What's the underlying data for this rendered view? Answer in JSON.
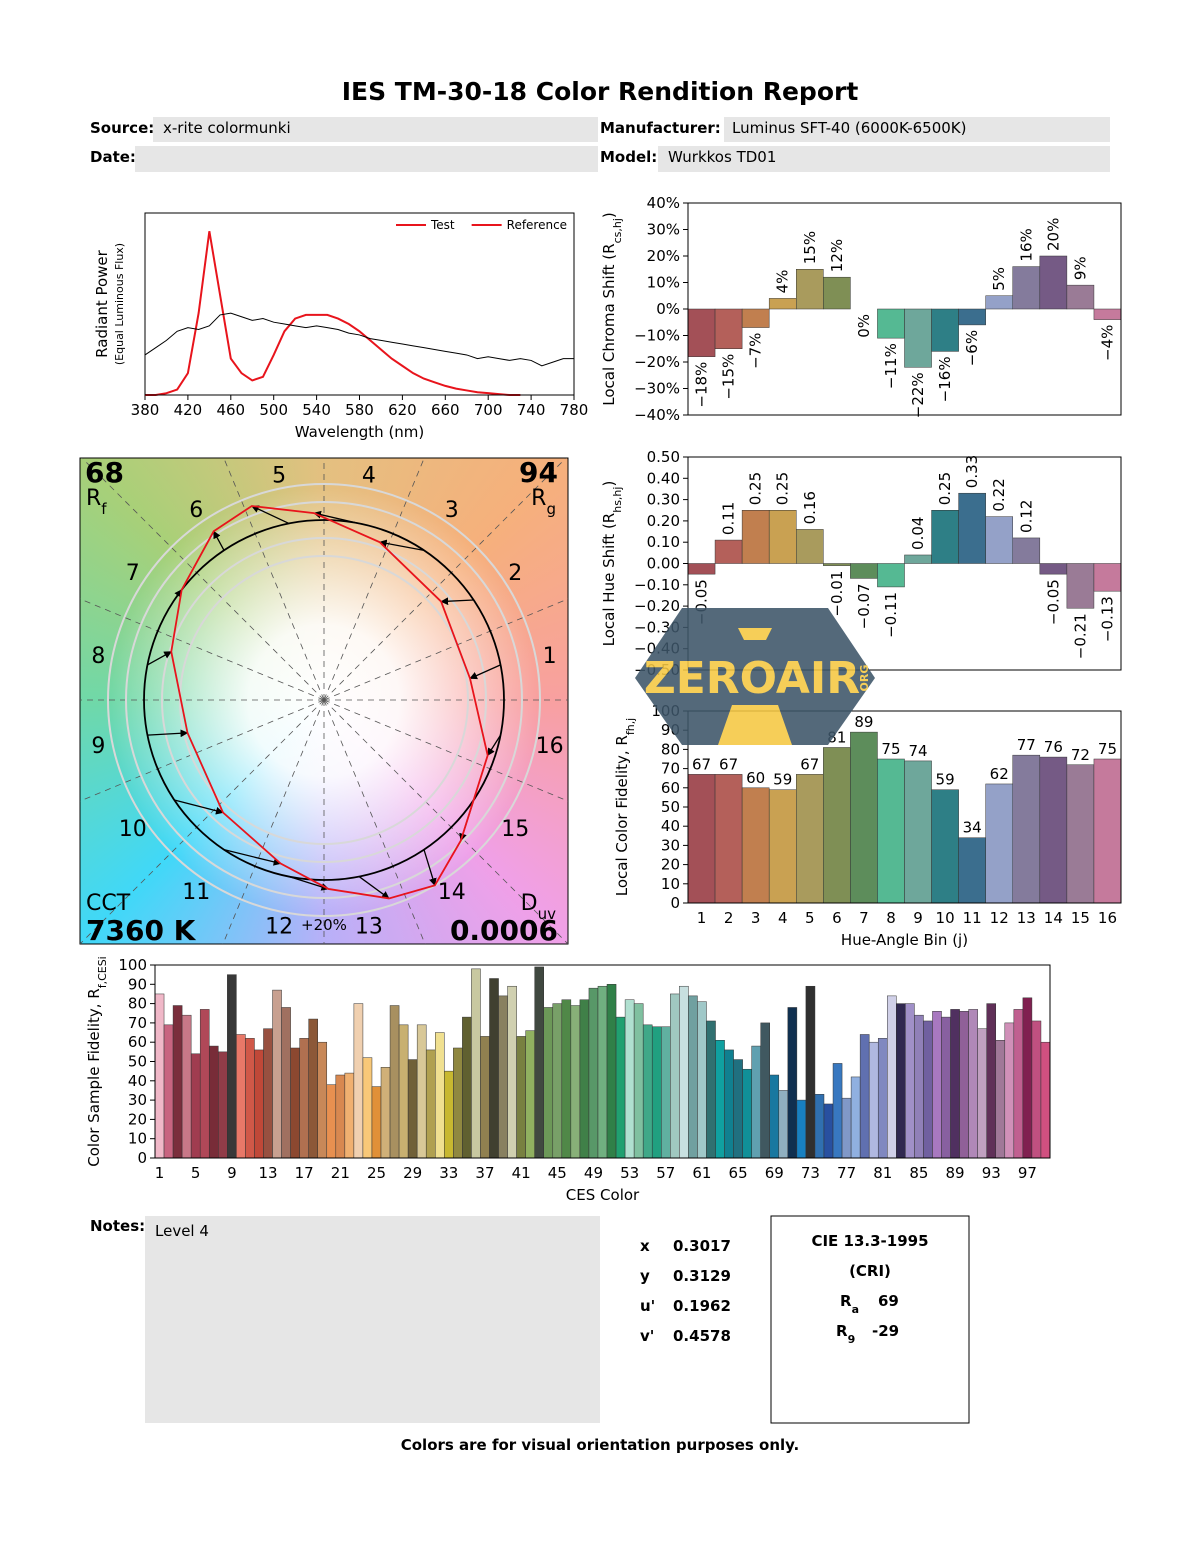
{
  "header": {
    "title": "IES TM-30-18 Color Rendition Report",
    "source_label": "Source:",
    "source": "x-rite colormunki",
    "manufacturer_label": "Manufacturer:",
    "manufacturer": "Luminus SFT-40 (6000K-6500K)",
    "date_label": "Date:",
    "model_label": "Model:",
    "model": "Wurkkos TD01"
  },
  "chart_data": [
    {
      "type": "line",
      "x_label": "Wavelength (nm)",
      "y_label": "Radiant Power",
      "y_label_sub": "(Equal Luminous Flux)",
      "x": [
        380,
        390,
        400,
        410,
        420,
        430,
        440,
        450,
        460,
        470,
        480,
        490,
        500,
        510,
        520,
        530,
        540,
        550,
        560,
        570,
        580,
        590,
        600,
        610,
        620,
        630,
        640,
        650,
        660,
        670,
        680,
        690,
        700,
        710,
        720,
        730,
        740,
        750,
        760,
        770,
        780
      ],
      "xlim": [
        380,
        780
      ],
      "xticks": [
        380,
        420,
        460,
        500,
        540,
        580,
        620,
        660,
        700,
        740,
        780
      ],
      "ylim": [
        0,
        1
      ],
      "legend": "upper right",
      "series": [
        {
          "name": "Test",
          "color": "#e8141c",
          "values": [
            0,
            0,
            0.01,
            0.03,
            0.12,
            0.45,
            0.9,
            0.55,
            0.2,
            0.12,
            0.08,
            0.1,
            0.22,
            0.35,
            0.42,
            0.44,
            0.44,
            0.44,
            0.42,
            0.39,
            0.35,
            0.3,
            0.25,
            0.2,
            0.16,
            0.12,
            0.09,
            0.07,
            0.05,
            0.035,
            0.025,
            0.015,
            0.01,
            0.005,
            0,
            0,
            null,
            null,
            null,
            null,
            null
          ]
        },
        {
          "name": "Reference",
          "color": "#000000",
          "values": [
            0.22,
            0.26,
            0.3,
            0.35,
            0.37,
            0.36,
            0.38,
            0.44,
            0.45,
            0.43,
            0.41,
            0.42,
            0.4,
            0.39,
            0.38,
            0.37,
            0.38,
            0.37,
            0.36,
            0.34,
            0.33,
            0.31,
            0.3,
            0.29,
            0.28,
            0.27,
            0.26,
            0.25,
            0.24,
            0.23,
            0.22,
            0.2,
            0.21,
            0.2,
            0.19,
            0.2,
            0.19,
            0.16,
            0.18,
            0.2,
            0.2
          ]
        }
      ]
    },
    {
      "type": "bar",
      "y_label": {
        "text": "Local Chroma Shift (R",
        "sub": "cs,hj",
        "end": ")"
      },
      "values": [
        -18,
        -15,
        -7,
        4,
        15,
        12,
        0,
        -11,
        -22,
        -16,
        -6,
        5,
        16,
        20,
        9,
        -4
      ],
      "value_labels": [
        "−18%",
        "−15%",
        "−7%",
        "4%",
        "15%",
        "12%",
        "0%",
        "−11%",
        "−22%",
        "−16%",
        "−6%",
        "5%",
        "16%",
        "20%",
        "9%",
        "−4%"
      ],
      "colors": [
        "#a35057",
        "#b4605a",
        "#c17f4f",
        "#c9a152",
        "#a99b5d",
        "#7f8f55",
        "#5d8d5b",
        "#55b993",
        "#6ea79b",
        "#2e7f86",
        "#3b6e8e",
        "#94a1c8",
        "#847b9c",
        "#755a85",
        "#9a7b96",
        "#c57a9c"
      ],
      "ylim": [
        -40,
        40
      ],
      "yticks": [
        {
          "value": -40,
          "label": "−40%"
        },
        {
          "value": -30,
          "label": "−30%"
        },
        {
          "value": -20,
          "label": "−20%"
        },
        {
          "value": -10,
          "label": "−10%"
        },
        {
          "value": 0,
          "label": "0%"
        },
        {
          "value": 10,
          "label": "10%"
        },
        {
          "value": 20,
          "label": "20%"
        },
        {
          "value": 30,
          "label": "30%"
        },
        {
          "value": 40,
          "label": "40%"
        }
      ]
    },
    {
      "type": "bar",
      "y_label": {
        "text": "Local Hue Shift (R",
        "sub": "hs,hj",
        "end": ")"
      },
      "values": [
        -0.05,
        0.11,
        0.25,
        0.25,
        0.16,
        -0.01,
        -0.07,
        -0.11,
        0.04,
        0.25,
        0.33,
        0.22,
        0.12,
        -0.05,
        -0.21,
        -0.13
      ],
      "value_labels": [
        "−0.05",
        "0.11",
        "0.25",
        "0.25",
        "0.16",
        "−0.01",
        "−0.07",
        "−0.11",
        "0.04",
        "0.25",
        "0.33",
        "0.22",
        "0.12",
        "−0.05",
        "−0.21",
        "−0.13"
      ],
      "colors": [
        "#a35057",
        "#b4605a",
        "#c17f4f",
        "#c9a152",
        "#a99b5d",
        "#7f8f55",
        "#5d8d5b",
        "#55b993",
        "#6ea79b",
        "#2e7f86",
        "#3b6e8e",
        "#94a1c8",
        "#847b9c",
        "#755a85",
        "#9a7b96",
        "#c57a9c"
      ],
      "ylim": [
        -0.5,
        0.5
      ],
      "yticks": [
        {
          "value": -0.5,
          "label": "−0.50"
        },
        {
          "value": -0.4,
          "label": "−0.40"
        },
        {
          "value": -0.3,
          "label": "−0.30"
        },
        {
          "value": -0.2,
          "label": "−0.20"
        },
        {
          "value": -0.1,
          "label": "−0.10"
        },
        {
          "value": 0,
          "label": "0.00"
        },
        {
          "value": 0.1,
          "label": "0.10"
        },
        {
          "value": 0.2,
          "label": "0.20"
        },
        {
          "value": 0.3,
          "label": "0.30"
        },
        {
          "value": 0.4,
          "label": "0.40"
        },
        {
          "value": 0.5,
          "label": "0.50"
        }
      ]
    },
    {
      "type": "bar",
      "y_label": {
        "text": "Local Color Fidelity, R",
        "sub": "fh,j"
      },
      "x_label": "Hue-Angle Bin (j)",
      "data_labels": true,
      "categories": [
        "1",
        "2",
        "3",
        "4",
        "5",
        "6",
        "7",
        "8",
        "9",
        "10",
        "11",
        "12",
        "13",
        "14",
        "15",
        "16"
      ],
      "values": [
        67,
        67,
        60,
        59,
        67,
        81,
        89,
        75,
        74,
        59,
        34,
        62,
        77,
        76,
        72,
        75
      ],
      "colors": [
        "#a35057",
        "#b4605a",
        "#c17f4f",
        "#c9a152",
        "#a99b5d",
        "#7f8f55",
        "#5d8d5b",
        "#55b993",
        "#6ea79b",
        "#2e7f86",
        "#3b6e8e",
        "#94a1c8",
        "#847b9c",
        "#755a85",
        "#9a7b96",
        "#c57a9c"
      ],
      "ylim": [
        0,
        100
      ],
      "yticks": [
        0,
        10,
        20,
        30,
        40,
        50,
        60,
        70,
        80,
        90,
        100
      ]
    },
    {
      "type": "bar",
      "y_label": {
        "text": "Color Sample Fidelity, R",
        "sub": "f,CESi"
      },
      "x_label": "CES Color",
      "categories": [
        "1",
        null,
        null,
        null,
        "5",
        null,
        null,
        null,
        "9",
        null,
        null,
        null,
        "13",
        null,
        null,
        null,
        "17",
        null,
        null,
        null,
        "21",
        null,
        null,
        null,
        "25",
        null,
        null,
        null,
        "29",
        null,
        null,
        null,
        "33",
        null,
        null,
        null,
        "37",
        null,
        null,
        null,
        "41",
        null,
        null,
        null,
        "45",
        null,
        null,
        null,
        "49",
        null,
        null,
        null,
        "53",
        null,
        null,
        null,
        "57",
        null,
        null,
        null,
        "61",
        null,
        null,
        null,
        "65",
        null,
        null,
        null,
        "69",
        null,
        null,
        null,
        "73",
        null,
        null,
        null,
        "77",
        null,
        null,
        null,
        "81",
        null,
        null,
        null,
        "85",
        null,
        null,
        null,
        "89",
        null,
        null,
        null,
        "93",
        null,
        null,
        null,
        "97",
        null,
        null
      ],
      "values": [
        85,
        69,
        79,
        74,
        54,
        77,
        58,
        55,
        95,
        64,
        62,
        56,
        67,
        87,
        78,
        57,
        62,
        72,
        60,
        38,
        43,
        44,
        80,
        52,
        37,
        47,
        79,
        69,
        51,
        69,
        56,
        65,
        45,
        57,
        73,
        98,
        63,
        93,
        84,
        89,
        63,
        66,
        99,
        78,
        80,
        82,
        79,
        82,
        88,
        89,
        90,
        73,
        82,
        80,
        69,
        68,
        68,
        85,
        89,
        84,
        81,
        71,
        61,
        56,
        51,
        46,
        58,
        70,
        43,
        35,
        78,
        30,
        89,
        33,
        28,
        49,
        31,
        42,
        64,
        60,
        62,
        84,
        80,
        80,
        74,
        71,
        76,
        73,
        77,
        76,
        77,
        67,
        80,
        61,
        70,
        77,
        83,
        71,
        60
      ],
      "colors": [
        "#f0b8c8",
        "#c86480",
        "#7a2e3c",
        "#c87888",
        "#a03c50",
        "#b04858",
        "#782c38",
        "#903c48",
        "#383838",
        "#e87868",
        "#d05848",
        "#c04838",
        "#985040",
        "#c8a090",
        "#a07060",
        "#8c4830",
        "#b07050",
        "#8c5838",
        "#c88858",
        "#e89050",
        "#d88850",
        "#f0b070",
        "#f0d0b0",
        "#f8c878",
        "#e09038",
        "#d0b078",
        "#a89060",
        "#c8b070",
        "#706038",
        "#d8c898",
        "#b0a050",
        "#f0e090",
        "#c8b830",
        "#908840",
        "#606030",
        "#c8c8a0",
        "#908050",
        "#404030",
        "#888060",
        "#d0d0b0",
        "#788040",
        "#90b060",
        "#404840",
        "#6c9858",
        "#78a068",
        "#508848",
        "#88b078",
        "#408048",
        "#589868",
        "#70b080",
        "#308048",
        "#20a070",
        "#b0e0d0",
        "#80c0a0",
        "#40a888",
        "#20a080",
        "#60b0a0",
        "#a0c8c0",
        "#c8e0e0",
        "#70a0a0",
        "#a0c8c8",
        "#307070",
        "#10a0a0",
        "#108090",
        "#207080",
        "#109098",
        "#60a0b0",
        "#405860",
        "#1878a0",
        "#90b0c0",
        "#103050",
        "#1880c0",
        "#303030",
        "#3070b0",
        "#2850a0",
        "#3878c0",
        "#8098c8",
        "#90b0e0",
        "#6070b0",
        "#b0b8e0",
        "#8088c0",
        "#d0d0e8",
        "#302850",
        "#a090c8",
        "#9080b8",
        "#7060a0",
        "#a878c0",
        "#8860a0",
        "#503060",
        "#906098",
        "#b088b8",
        "#c0a0c0",
        "#603058",
        "#a07898",
        "#d090b8",
        "#c06090",
        "#802050",
        "#c05080",
        "#d05080"
      ],
      "ylim": [
        0,
        100
      ],
      "yticks": [
        0,
        10,
        20,
        30,
        40,
        50,
        60,
        70,
        80,
        90,
        100
      ]
    }
  ],
  "vector_graphic": {
    "rf": 68,
    "rf_label": "R",
    "rf_sub": "f",
    "rg": 94,
    "rg_label": "R",
    "rg_sub": "g",
    "cct_label": "CCT",
    "cct": "7360 K",
    "duv_label": "D",
    "duv_sub": "uv",
    "duv": "0.0006",
    "ring_label": "+20%",
    "bin_labels": [
      "1",
      "2",
      "3",
      "4",
      "5",
      "6",
      "7",
      "8",
      "9",
      "10",
      "11",
      "12",
      "13",
      "14",
      "15",
      "16"
    ]
  },
  "watermark": {
    "text": "ZEROAIR",
    "org": "ORG"
  },
  "notes": {
    "label": "Notes:",
    "text": "Level 4"
  },
  "chromaticity": [
    {
      "label": "x",
      "value": 0.3017
    },
    {
      "label": "y",
      "value": 0.3129
    },
    {
      "label": "u'",
      "value": 0.1962
    },
    {
      "label": "v'",
      "value": 0.4578
    }
  ],
  "cri": {
    "title": "CIE 13.3-1995",
    "subtitle": "(CRI)",
    "ra_label": "R",
    "ra_sub": "a",
    "ra": 69,
    "r9_label": "R",
    "r9_sub": "9",
    "r9": -29
  },
  "footer": "Colors are for visual orientation purposes only."
}
